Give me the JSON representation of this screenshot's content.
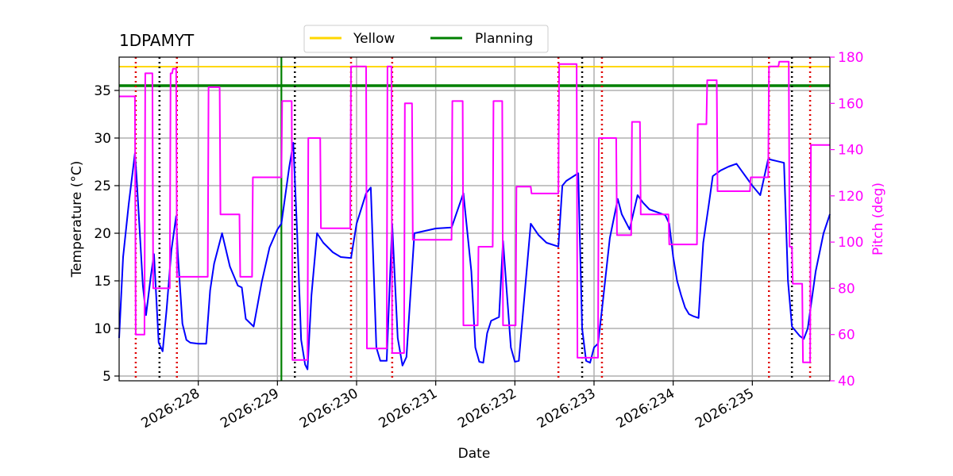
{
  "chart_data": {
    "type": "line",
    "title": "1DPAMYT",
    "xlabel": "Date",
    "ylabel": "Temperature ($^\\circ$C)",
    "y2label": "Pitch (deg)",
    "x_unit": "day-of-year 2026 (fractional)",
    "xlim": [
      227.0,
      235.98
    ],
    "ylim": [
      4.5,
      38.5
    ],
    "y2lim": [
      40,
      180
    ],
    "xticks": [
      228,
      229,
      230,
      231,
      232,
      233,
      234,
      235
    ],
    "xtick_labels": [
      "2026:228",
      "2026:229",
      "2026:230",
      "2026:231",
      "2026:232",
      "2026:233",
      "2026:234",
      "2026:235"
    ],
    "yticks": [
      5,
      10,
      15,
      20,
      25,
      30,
      35
    ],
    "y2ticks": [
      40,
      60,
      80,
      100,
      120,
      140,
      160,
      180
    ],
    "grid": true,
    "legend_position": "top-center",
    "legend": [
      {
        "name": "Yellow",
        "color": "#ffd700"
      },
      {
        "name": "Planning",
        "color": "#008000"
      }
    ],
    "hlines": [
      {
        "name": "Yellow",
        "y": 37.5,
        "color": "#ffd700"
      },
      {
        "name": "Planning",
        "y": 35.5,
        "color": "#008000"
      }
    ],
    "vline_now": {
      "x": 229.05,
      "color": "#008000"
    },
    "vlines_black_dotted": [
      227.51,
      229.22,
      232.85,
      235.5
    ],
    "vlines_red_dotted": [
      227.21,
      227.73,
      229.93,
      230.45,
      232.55,
      233.1,
      235.21,
      235.73
    ],
    "series": [
      {
        "name": "Temperature",
        "axis": "left",
        "color": "#0000ff",
        "x": [
          227.0,
          227.05,
          227.12,
          227.2,
          227.22,
          227.3,
          227.34,
          227.4,
          227.44,
          227.5,
          227.55,
          227.6,
          227.66,
          227.72,
          227.74,
          227.8,
          227.85,
          227.9,
          228.0,
          228.1,
          228.15,
          228.2,
          228.3,
          228.4,
          228.5,
          228.55,
          228.6,
          228.7,
          228.8,
          228.9,
          229.0,
          229.05,
          229.15,
          229.2,
          229.25,
          229.3,
          229.35,
          229.38,
          229.43,
          229.5,
          229.58,
          229.7,
          229.8,
          229.93,
          230.0,
          230.12,
          230.18,
          230.25,
          230.3,
          230.38,
          230.45,
          230.52,
          230.58,
          230.63,
          230.73,
          231.0,
          231.2,
          231.35,
          231.45,
          231.5,
          231.55,
          231.6,
          231.65,
          231.7,
          231.8,
          231.85,
          231.95,
          232.0,
          232.05,
          232.2,
          232.3,
          232.4,
          232.55,
          232.6,
          232.65,
          232.8,
          232.85,
          232.9,
          232.95,
          233.0,
          233.05,
          233.1,
          233.2,
          233.3,
          233.35,
          233.45,
          233.55,
          233.62,
          233.7,
          233.8,
          233.9,
          233.95,
          234.0,
          234.05,
          234.1,
          234.15,
          234.2,
          234.25,
          234.32,
          234.38,
          234.45,
          234.5,
          234.6,
          234.7,
          234.8,
          235.0,
          235.1,
          235.2,
          235.25,
          235.3,
          235.4,
          235.45,
          235.5,
          235.6,
          235.65,
          235.7,
          235.8,
          235.9,
          235.98
        ],
        "values": [
          9.0,
          17.5,
          23.0,
          28.4,
          26.0,
          14.5,
          11.4,
          15.5,
          17.8,
          8.5,
          7.6,
          12.0,
          18.2,
          21.8,
          18.0,
          10.5,
          8.8,
          8.5,
          8.4,
          8.4,
          14.0,
          16.8,
          20.0,
          16.5,
          14.5,
          14.3,
          11.0,
          10.2,
          14.8,
          18.5,
          20.4,
          21.0,
          27.0,
          29.5,
          20.0,
          8.8,
          6.2,
          5.7,
          13.5,
          20.0,
          19.0,
          18.0,
          17.5,
          17.4,
          21.0,
          24.2,
          24.8,
          8.0,
          6.6,
          6.6,
          21.0,
          9.0,
          6.1,
          7.0,
          20.0,
          20.5,
          20.6,
          24.2,
          16.0,
          8.0,
          6.5,
          6.4,
          9.5,
          10.8,
          11.2,
          19.2,
          8.0,
          6.5,
          6.6,
          21.0,
          19.8,
          19.0,
          18.6,
          25.0,
          25.5,
          26.3,
          10.0,
          6.6,
          6.4,
          8.0,
          8.4,
          12.0,
          19.5,
          23.6,
          22.0,
          20.4,
          24.0,
          23.2,
          22.5,
          22.2,
          21.9,
          21.0,
          17.5,
          15.0,
          13.5,
          12.2,
          11.5,
          11.3,
          11.1,
          19.0,
          23.0,
          26.0,
          26.6,
          27.0,
          27.3,
          25.0,
          24.0,
          27.8,
          27.7,
          27.6,
          27.4,
          15.0,
          10.2,
          9.2,
          8.9,
          10.0,
          16.0,
          20.0,
          22.0
        ]
      },
      {
        "name": "Pitch",
        "axis": "right",
        "color": "#ff00ff",
        "x": [
          227.0,
          227.01,
          227.2,
          227.21,
          227.32,
          227.33,
          227.42,
          227.43,
          227.64,
          227.65,
          227.67,
          227.68,
          227.72,
          227.73,
          228.12,
          228.13,
          228.27,
          228.28,
          228.52,
          228.53,
          228.68,
          228.69,
          229.05,
          229.06,
          229.18,
          229.19,
          229.38,
          229.39,
          229.54,
          229.55,
          229.92,
          229.93,
          230.12,
          230.13,
          230.38,
          230.39,
          230.44,
          230.45,
          230.6,
          230.61,
          230.7,
          230.71,
          231.2,
          231.21,
          231.34,
          231.35,
          231.53,
          231.54,
          231.72,
          231.73,
          231.84,
          231.85,
          232.01,
          232.02,
          232.2,
          232.21,
          232.55,
          232.56,
          232.78,
          232.79,
          233.05,
          233.06,
          233.28,
          233.29,
          233.47,
          233.48,
          233.58,
          233.59,
          233.94,
          233.95,
          234.3,
          234.31,
          234.42,
          234.43,
          234.55,
          234.56,
          234.97,
          234.98,
          235.2,
          235.21,
          235.33,
          235.34,
          235.46,
          235.47,
          235.5,
          235.51,
          235.63,
          235.64,
          235.73,
          235.74,
          235.98
        ],
        "values": [
          163,
          163,
          163,
          60,
          60,
          173,
          173,
          80,
          80,
          173,
          173,
          175,
          175,
          85,
          85,
          167,
          167,
          112,
          112,
          85,
          85,
          128,
          128,
          161,
          161,
          49,
          49,
          145,
          145,
          106,
          106,
          176,
          176,
          54,
          54,
          176,
          176,
          52,
          52,
          160,
          160,
          101,
          101,
          161,
          161,
          64,
          64,
          98,
          98,
          161,
          161,
          64,
          64,
          124,
          124,
          121,
          121,
          177,
          177,
          50,
          50,
          145,
          145,
          103,
          103,
          152,
          152,
          112,
          112,
          99,
          99,
          151,
          151,
          170,
          170,
          122,
          122,
          128,
          128,
          176,
          176,
          178,
          178,
          98,
          98,
          82,
          82,
          48,
          48,
          142,
          142
        ]
      }
    ]
  }
}
